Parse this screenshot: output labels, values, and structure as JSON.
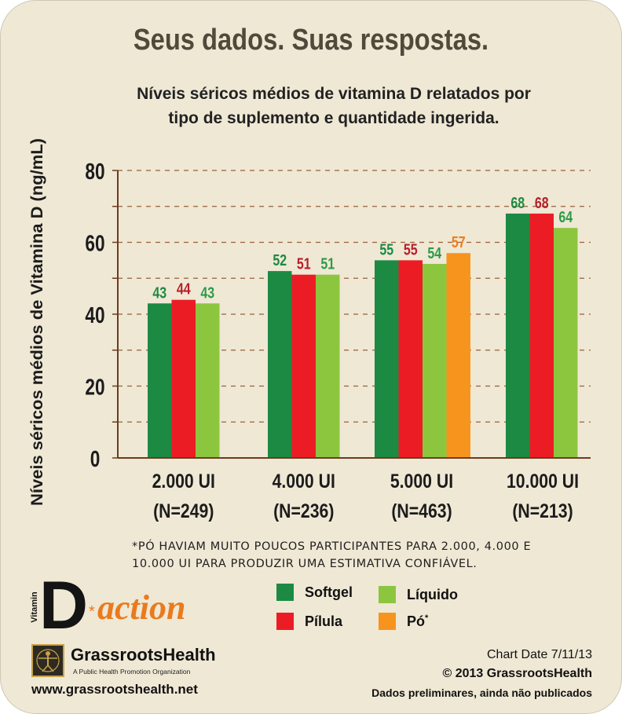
{
  "headline": "Seus dados. Suas respostas.",
  "subtitle_lines": [
    "Níveis séricos médios de vitamina D relatados por",
    "tipo de suplemento e quantidade ingerida."
  ],
  "chart_data": {
    "type": "bar",
    "title": "",
    "ylabel": "Níveis séricos médios de Vitamina D (ng/mL)",
    "xlabel": "",
    "ylim": [
      0,
      80
    ],
    "yticks": [
      0,
      20,
      40,
      60,
      80
    ],
    "grid": "dashed horizontal every 10",
    "groups": [
      {
        "label": "2.000 UI",
        "n": "(N=249)",
        "bars": [
          {
            "series": "Softgel",
            "value": 43
          },
          {
            "series": "Pílula",
            "value": 44
          },
          {
            "series": "Líquido",
            "value": 43
          }
        ]
      },
      {
        "label": "4.000 UI",
        "n": "(N=236)",
        "bars": [
          {
            "series": "Softgel",
            "value": 52
          },
          {
            "series": "Pílula",
            "value": 51
          },
          {
            "series": "Líquido",
            "value": 51
          }
        ]
      },
      {
        "label": "5.000 UI",
        "n": "(N=463)",
        "bars": [
          {
            "series": "Softgel",
            "value": 55
          },
          {
            "series": "Pílula",
            "value": 55
          },
          {
            "series": "Líquido",
            "value": 54
          },
          {
            "series": "Pó",
            "value": 57
          }
        ]
      },
      {
        "label": "10.000 UI",
        "n": "(N=213)",
        "bars": [
          {
            "series": "Softgel",
            "value": 68
          },
          {
            "series": "Pílula",
            "value": 68
          },
          {
            "series": "Líquido",
            "value": 64
          }
        ]
      }
    ],
    "series": [
      {
        "name": "Softgel",
        "color": "#1c8a43",
        "label_color": "#1c8a43"
      },
      {
        "name": "Pílula",
        "color": "#ec1c24",
        "label_color": "#b81e2a"
      },
      {
        "name": "Líquido",
        "color": "#8cc63f",
        "label_color": "#2e9a48"
      },
      {
        "name": "Pó",
        "color": "#f7941d",
        "label_color": "#ef7d1a"
      }
    ]
  },
  "footnote_lines": [
    "*PÓ HAVIAM MUITO POUCOS PARTICIPANTES PARA 2.000, 4.000 E",
    "10.000 UI PARA PRODUZIR UMA ESTIMATIVA CONFIÁVEL."
  ],
  "legend": [
    {
      "name": "Softgel",
      "color": "#1c8a43"
    },
    {
      "name": "Líquido",
      "color": "#8cc63f"
    },
    {
      "name": "Pílula",
      "color": "#ec1c24"
    },
    {
      "name": "Pó",
      "sup": "*",
      "color": "#f7941d"
    }
  ],
  "logo": {
    "vitamin": "Vitamin",
    "d": "D",
    "star": "*",
    "action": "action"
  },
  "grassroots": {
    "name": "GrassrootsHealth",
    "tagline": "A Public Health Promotion Organization",
    "url": "www.grassrootshealth.net"
  },
  "info": {
    "chart_date": "Chart Date 7/11/13",
    "copyright": "© 2013 GrassrootsHealth",
    "note": "Dados preliminares, ainda não publicados"
  },
  "colors": {
    "background": "#efe8d5",
    "headline": "#4f4a3b",
    "grid": "#9a5f38",
    "axis": "#6a3c1f"
  }
}
